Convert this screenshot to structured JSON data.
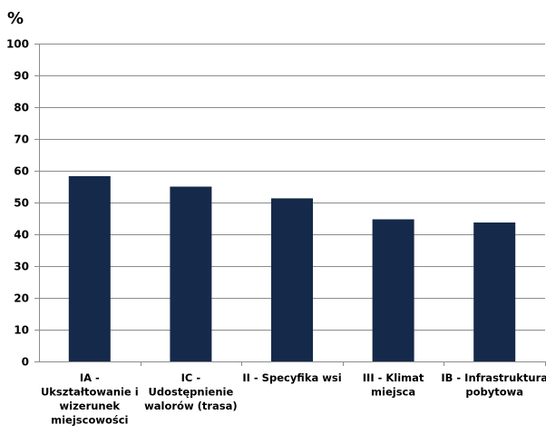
{
  "chart_data": {
    "type": "bar",
    "unit_label": "%",
    "categories": [
      [
        "IA -",
        "Ukształtowanie i",
        "wizerunek",
        "miejscowości"
      ],
      [
        "IC -",
        "Udostępnienie",
        "walorów (trasa)"
      ],
      [
        "II - Specyfika wsi"
      ],
      [
        "III - Klimat",
        "miejsca"
      ],
      [
        "IB - Infrastruktura",
        "pobytowa"
      ]
    ],
    "values": [
      58.3,
      55.0,
      51.3,
      44.7,
      43.7
    ],
    "ylim": [
      0,
      100
    ],
    "yticks": [
      0,
      10,
      20,
      30,
      40,
      50,
      60,
      70,
      80,
      90,
      100
    ],
    "grid": true,
    "bar_color": "#15294a"
  }
}
